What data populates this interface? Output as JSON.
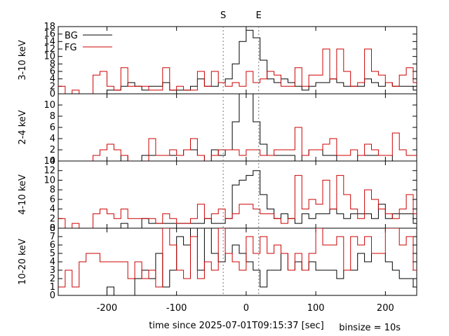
{
  "chart_data": {
    "type": "step",
    "xlabel": "time since 2025-07-01T09:15:37 [sec]",
    "binsize_label": "binsize = 10s",
    "xlim": [
      -270,
      245
    ],
    "x_ticks": [
      -200,
      -100,
      0,
      100,
      200
    ],
    "markers": [
      {
        "label": "S",
        "x": -33
      },
      {
        "label": "E",
        "x": 18
      }
    ],
    "legend": [
      {
        "name": "BG",
        "color": "#000000"
      },
      {
        "name": "FG",
        "color": "#cc0000"
      }
    ],
    "bin_edges_start": -270,
    "bin_width": 10,
    "panels": [
      {
        "ylabel": "3-10 keV",
        "ylim": [
          0,
          18
        ],
        "y_ticks": [
          0,
          2,
          4,
          6,
          8,
          10,
          12,
          14,
          16,
          18
        ],
        "series": [
          {
            "name": "BG",
            "color": "#000000",
            "values": [
              0,
              0,
              0,
              0,
              0,
              0,
              0,
              1,
              1,
              2,
              3,
              2,
              1,
              2,
              2,
              3,
              1,
              1,
              1,
              2,
              4,
              2,
              2,
              3,
              4,
              8,
              14,
              17,
              15,
              9,
              4,
              3,
              4,
              3,
              2,
              1,
              2,
              3,
              3,
              4,
              3,
              2,
              2,
              2,
              4,
              3,
              2,
              3,
              2,
              2,
              2,
              1,
              1,
              1,
              0,
              0,
              0,
              0,
              0,
              0
            ]
          },
          {
            "name": "FG",
            "color": "#cc0000",
            "values": [
              2,
              0,
              1,
              0,
              0,
              5,
              6,
              2,
              1,
              7,
              2,
              2,
              2,
              1,
              1,
              7,
              1,
              2,
              1,
              1,
              6,
              2,
              6,
              3,
              2,
              3,
              2,
              6,
              3,
              4,
              6,
              5,
              2,
              2,
              7,
              2,
              5,
              5,
              12,
              4,
              12,
              6,
              2,
              3,
              12,
              6,
              5,
              3,
              2,
              5,
              7,
              3,
              2,
              6,
              4,
              1,
              2,
              0,
              0,
              0
            ]
          }
        ]
      },
      {
        "ylabel": "2-4 keV",
        "ylim": [
          0,
          12
        ],
        "y_ticks": [
          0,
          2,
          4,
          6,
          8,
          10
        ],
        "series": [
          {
            "name": "BG",
            "color": "#000000",
            "values": [
              0,
              0,
              0,
              0,
              0,
              0,
              0,
              0,
              0,
              1,
              0,
              0,
              1,
              1,
              1,
              1,
              1,
              1,
              2,
              2,
              1,
              0,
              2,
              1,
              2,
              7,
              12,
              12,
              7,
              3,
              1,
              1,
              1,
              1,
              0,
              1,
              2,
              2,
              1,
              1,
              0,
              0,
              0,
              1,
              1,
              1,
              1,
              1,
              0,
              0,
              0,
              0,
              1,
              0,
              0,
              0,
              0,
              0,
              0,
              0
            ]
          },
          {
            "name": "FG",
            "color": "#cc0000",
            "values": [
              0,
              0,
              0,
              0,
              0,
              1,
              2,
              3,
              2,
              1,
              0,
              0,
              0,
              4,
              1,
              1,
              2,
              1,
              2,
              4,
              1,
              0,
              1,
              2,
              2,
              2,
              1,
              2,
              2,
              1,
              1,
              2,
              2,
              2,
              6,
              1,
              2,
              2,
              3,
              4,
              1,
              1,
              2,
              1,
              3,
              2,
              1,
              1,
              5,
              2,
              1,
              1,
              2,
              1,
              0,
              0,
              0,
              0,
              0,
              0
            ]
          }
        ]
      },
      {
        "ylabel": "4-10 keV",
        "ylim": [
          0,
          14
        ],
        "y_ticks": [
          0,
          2,
          4,
          6,
          8,
          10,
          12,
          14
        ],
        "series": [
          {
            "name": "BG",
            "color": "#000000",
            "values": [
              0,
              0,
              0,
              0,
              0,
              0,
              0,
              0,
              0,
              1,
              0,
              0,
              2,
              1,
              1,
              1,
              1,
              1,
              1,
              1,
              1,
              2,
              1,
              1,
              2,
              9,
              10,
              11,
              12,
              7,
              4,
              2,
              3,
              2,
              1,
              3,
              2,
              3,
              3,
              4,
              3,
              2,
              3,
              3,
              3,
              2,
              5,
              2,
              3,
              3,
              3,
              1,
              1,
              0,
              0,
              0,
              0,
              0,
              0,
              0
            ]
          },
          {
            "name": "FG",
            "color": "#cc0000",
            "values": [
              2,
              0,
              1,
              0,
              0,
              3,
              4,
              3,
              2,
              4,
              2,
              2,
              2,
              2,
              1,
              3,
              2,
              1,
              1,
              2,
              5,
              2,
              3,
              4,
              2,
              3,
              5,
              5,
              4,
              3,
              3,
              2,
              1,
              2,
              11,
              4,
              6,
              5,
              10,
              4,
              11,
              7,
              4,
              2,
              8,
              6,
              4,
              3,
              2,
              4,
              7,
              3,
              2,
              4,
              3,
              1,
              2,
              0,
              0,
              0
            ]
          }
        ]
      },
      {
        "ylabel": "10-20 keV",
        "ylim": [
          0,
          8
        ],
        "y_ticks": [
          0,
          1,
          2,
          3,
          4,
          5,
          6,
          7,
          8
        ],
        "series": [
          {
            "name": "BG",
            "color": "#000000",
            "values": [
              0,
              0,
              0,
              0,
              0,
              0,
              0,
              1,
              0,
              0,
              0,
              2,
              3,
              2,
              5,
              1,
              3,
              7,
              6,
              8,
              3,
              8,
              5,
              4,
              5,
              6,
              5,
              4,
              3,
              1,
              3,
              3,
              5,
              3,
              4,
              3,
              4,
              3,
              3,
              3,
              2,
              3,
              3,
              5,
              4,
              5,
              5,
              4,
              3,
              2,
              2,
              1,
              1,
              1,
              2,
              0,
              0,
              0,
              0,
              0
            ]
          },
          {
            "name": "FG",
            "color": "#cc0000",
            "values": [
              1,
              3,
              1,
              4,
              5,
              5,
              4,
              4,
              4,
              4,
              2,
              4,
              2,
              3,
              1,
              8,
              6,
              3,
              2,
              7,
              2,
              4,
              3,
              8,
              5,
              4,
              3,
              7,
              5,
              7,
              5,
              6,
              5,
              3,
              5,
              3,
              5,
              8,
              6,
              6,
              7,
              3,
              7,
              6,
              7,
              5,
              5,
              8,
              8,
              6,
              7,
              3,
              7,
              6,
              5,
              3,
              2,
              1,
              0,
              0
            ]
          }
        ]
      }
    ]
  }
}
